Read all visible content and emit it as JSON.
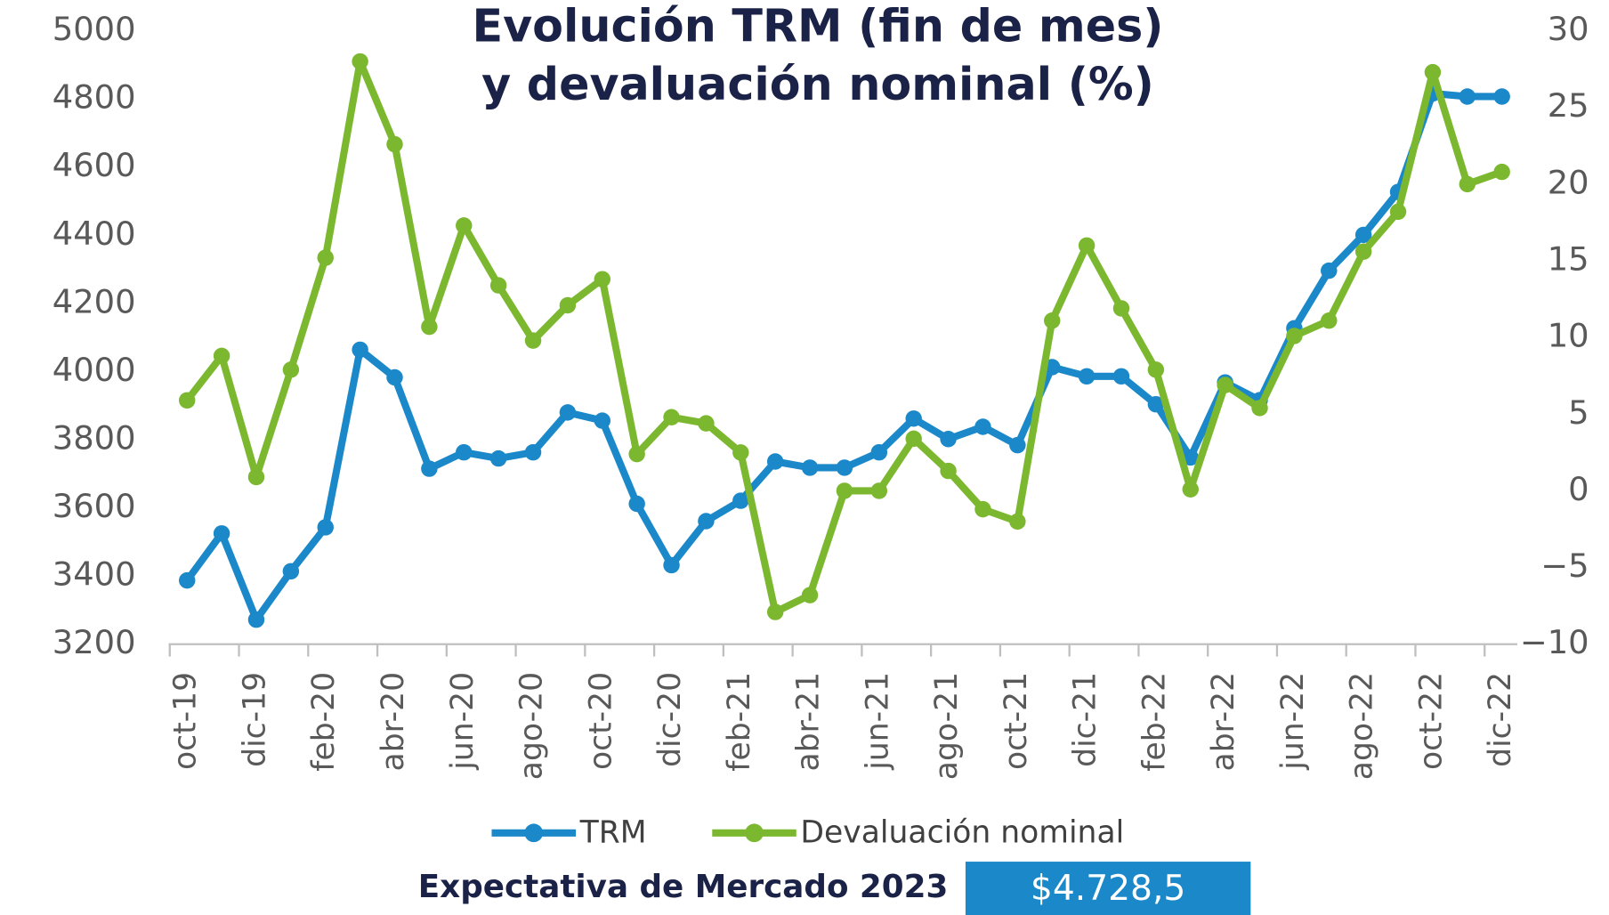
{
  "chart_data": {
    "type": "line",
    "title": "Evolución TRM (fin de mes)",
    "subtitle": "y devaluación nominal (%)",
    "categories": [
      "oct-19",
      null,
      "dic-19",
      null,
      "feb-20",
      null,
      "abr-20",
      null,
      "jun-20",
      null,
      "ago-20",
      null,
      "oct-20",
      null,
      "dic-20",
      null,
      "feb-21",
      null,
      "abr-21",
      null,
      "jun-21",
      null,
      "ago-21",
      null,
      "oct-21",
      null,
      "dic-21",
      null,
      "feb-22",
      null,
      "abr-22",
      null,
      "jun-22",
      null,
      "ago-22",
      null,
      "oct-22",
      null,
      "dic-22"
    ],
    "series": [
      {
        "name": "TRM",
        "color": "#1a88c9",
        "axis": "y",
        "values": [
          3387,
          3525,
          3272,
          3414,
          3543,
          4064,
          3983,
          3715,
          3763,
          3745,
          3763,
          3880,
          3856,
          3612,
          3432,
          3561,
          3621,
          3736,
          3718,
          3718,
          3763,
          3862,
          3802,
          3838,
          3784,
          4013,
          3986,
          3986,
          3904,
          3748,
          3968,
          3916,
          4127,
          4296,
          4401,
          4527,
          4816,
          4807,
          4807
        ]
      },
      {
        "name": "Devaluación nominal",
        "color": "#7cb82f",
        "axis": "y2",
        "values": [
          5.9,
          8.8,
          0.9,
          7.9,
          15.2,
          28.0,
          22.6,
          10.7,
          17.3,
          13.4,
          9.8,
          12.1,
          13.8,
          2.4,
          4.8,
          4.4,
          2.5,
          -7.9,
          -6.8,
          0,
          0,
          3.4,
          1.3,
          -1.2,
          -2.0,
          11.1,
          16.0,
          11.9,
          7.9,
          0.1,
          6.9,
          5.4,
          10.1,
          11.1,
          15.6,
          18.2,
          27.3,
          20.0,
          20.8
        ]
      }
    ],
    "ylim": [
      3200,
      5000
    ],
    "yticks": [
      3200,
      3400,
      3600,
      3800,
      4000,
      4200,
      4400,
      4600,
      4800,
      5000
    ],
    "y2lim": [
      -10,
      30
    ],
    "y2ticks": [
      {
        "value": -10,
        "label": "−10"
      },
      {
        "value": -5,
        "label": "−5"
      },
      0,
      5,
      10,
      15,
      20,
      25,
      30
    ],
    "legend": "bottom",
    "annotation": {
      "label": "Expectativa de Mercado 2023",
      "value": "$4.728,5"
    }
  }
}
